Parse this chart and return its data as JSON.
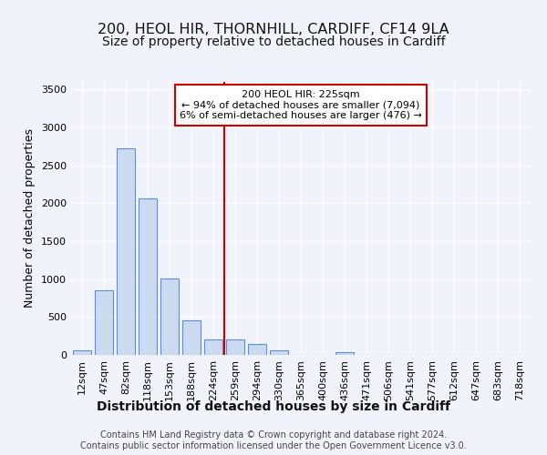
{
  "title": "200, HEOL HIR, THORNHILL, CARDIFF, CF14 9LA",
  "subtitle": "Size of property relative to detached houses in Cardiff",
  "xlabel": "Distribution of detached houses by size in Cardiff",
  "ylabel": "Number of detached properties",
  "categories": [
    "12sqm",
    "47sqm",
    "82sqm",
    "118sqm",
    "153sqm",
    "188sqm",
    "224sqm",
    "259sqm",
    "294sqm",
    "330sqm",
    "365sqm",
    "400sqm",
    "436sqm",
    "471sqm",
    "506sqm",
    "541sqm",
    "577sqm",
    "612sqm",
    "647sqm",
    "683sqm",
    "718sqm"
  ],
  "values": [
    55,
    850,
    2730,
    2060,
    1010,
    460,
    210,
    210,
    145,
    60,
    5,
    5,
    40,
    5,
    5,
    5,
    5,
    5,
    5,
    5,
    5
  ],
  "bar_color": "#ccdaf0",
  "bar_edge_color": "#5b8dd9",
  "vline_x": 6.5,
  "vline_color": "#cc0000",
  "annotation_text": "200 HEOL HIR: 225sqm\n← 94% of detached houses are smaller (7,094)\n6% of semi-detached houses are larger (476) →",
  "annotation_box_color": "#ffffff",
  "annotation_box_edge": "#cc0000",
  "ylim": [
    0,
    3600
  ],
  "yticks": [
    0,
    500,
    1000,
    1500,
    2000,
    2500,
    3000,
    3500
  ],
  "footer_text": "Contains HM Land Registry data © Crown copyright and database right 2024.\nContains public sector information licensed under the Open Government Licence v3.0.",
  "bg_color": "#f0f4fa",
  "plot_bg_color": "#f0f4fa",
  "grid_color": "#ffffff",
  "title_fontsize": 11.5,
  "subtitle_fontsize": 10,
  "xlabel_fontsize": 10,
  "ylabel_fontsize": 9,
  "tick_fontsize": 8,
  "annotation_fontsize": 8,
  "footer_fontsize": 7
}
